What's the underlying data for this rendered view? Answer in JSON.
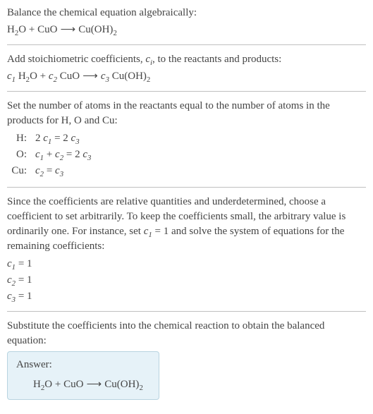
{
  "intro": {
    "line1": "Balance the chemical equation algebraically:",
    "eq_h2o": "H",
    "eq_h2o_sub": "2",
    "eq_h2o_o": "O",
    "plus": " + ",
    "arrow": " ⟶ ",
    "cu": "Cu",
    "o": "O",
    "cuoh": "Cu(OH)",
    "cuoh_sub": "2"
  },
  "stoich": {
    "text_a": "Add stoichiometric coefficients, ",
    "ci": "c",
    "ci_sub": "i",
    "text_b": ", to the reactants and products:",
    "c1": "c",
    "s1": "1",
    "c2": "c",
    "s2": "2",
    "c3": "c",
    "s3": "3",
    "sp": " "
  },
  "atoms": {
    "text": "Set the number of atoms in the reactants equal to the number of atoms in the products for H, O and Cu:",
    "rows": [
      {
        "el": "H:",
        "lhs_a": "2 ",
        "lhs_c": "c",
        "lhs_s": "1",
        "eq": " = ",
        "rhs_a": "2 ",
        "rhs_c": "c",
        "rhs_s": "3"
      },
      {
        "el": "O:",
        "lhs_c1": "c",
        "lhs_s1": "1",
        "plus": " + ",
        "lhs_c2": "c",
        "lhs_s2": "2",
        "eq": " = ",
        "rhs_a": "2 ",
        "rhs_c": "c",
        "rhs_s": "3"
      },
      {
        "el": "Cu:",
        "lhs_c": "c",
        "lhs_s": "2",
        "eq": " = ",
        "rhs_c": "c",
        "rhs_s": "3"
      }
    ]
  },
  "solve": {
    "text_a": "Since the coefficients are relative quantities and underdetermined, choose a coefficient to set arbitrarily. To keep the coefficients small, the arbitrary value is ordinarily one. For instance, set ",
    "c": "c",
    "s": "1",
    "eqone": " = 1",
    "text_b": " and solve the system of equations for the remaining coefficients:",
    "results": [
      {
        "c": "c",
        "s": "1",
        "v": " = 1"
      },
      {
        "c": "c",
        "s": "2",
        "v": " = 1"
      },
      {
        "c": "c",
        "s": "3",
        "v": " = 1"
      }
    ]
  },
  "final": {
    "text": "Substitute the coefficients into the chemical reaction to obtain the balanced equation:",
    "answer_label": "Answer:"
  },
  "colors": {
    "text": "#444444",
    "rule": "#c0c0c0",
    "box_bg": "#e6f2f8",
    "box_border": "#b8d4e0"
  }
}
